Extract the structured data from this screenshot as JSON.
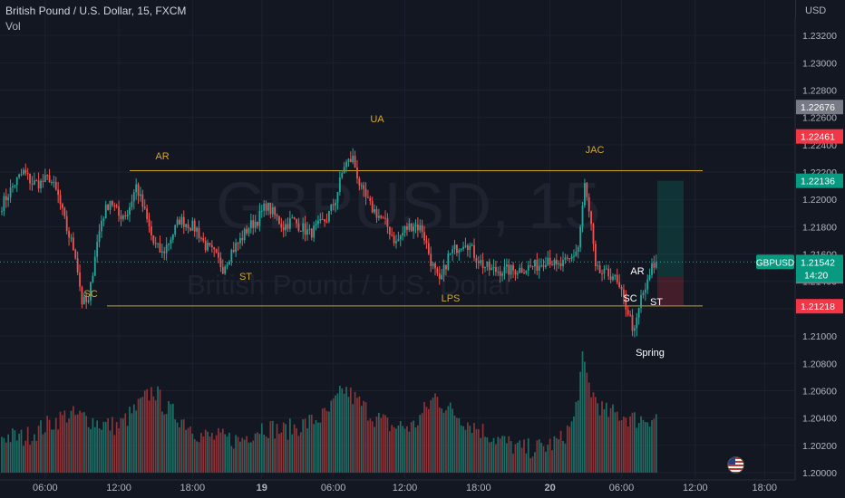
{
  "header": {
    "title": "British Pound / U.S. Dollar, 15, FXCM",
    "volume_label": "Vol",
    "currency": "USD"
  },
  "watermark": {
    "symbol": "GBPUSD, 15",
    "name": "British Pound / U.S. Dollar"
  },
  "colors": {
    "background": "#131722",
    "up": "#26a69a",
    "down": "#ef5350",
    "range_lines": "#c9a227",
    "annotation": "#d4a82a"
  },
  "chart_data": {
    "type": "candlestick",
    "symbol": "GBPUSD",
    "interval": "15",
    "source": "FXCM",
    "x_ticks": [
      "06:00",
      "12:00",
      "18:00",
      "19",
      "06:00",
      "12:00",
      "18:00",
      "20",
      "06:00",
      "12:00",
      "18:00"
    ],
    "y_ticks": [
      1.232,
      1.23,
      1.228,
      1.226,
      1.224,
      1.222,
      1.22,
      1.218,
      1.216,
      1.214,
      1.212,
      1.21,
      1.208,
      1.206,
      1.204,
      1.202,
      1.2
    ],
    "ylim": [
      1.1996,
      1.2338
    ],
    "price_labels": [
      {
        "value": "1.22676",
        "color": "#787b86"
      },
      {
        "value": "1.22461",
        "color": "#f23645"
      },
      {
        "value": "1.22136",
        "color": "#089981"
      },
      {
        "value": "1.21437",
        "color": "#787b86"
      },
      {
        "value": "1.21218",
        "color": "#f23645"
      }
    ],
    "last_price": {
      "symbol": "GBPUSD",
      "value": "1.21542",
      "countdown": "14:20",
      "price": 1.21542
    },
    "range": {
      "top": 1.2221,
      "bottom": 1.2122
    },
    "annotations": [
      {
        "text": "AR",
        "color": "#d4a82a"
      },
      {
        "text": "UA",
        "color": "#d4a82a"
      },
      {
        "text": "JAC",
        "color": "#d4a82a"
      },
      {
        "text": "SC",
        "color": "#d4a82a"
      },
      {
        "text": "ST",
        "color": "#d4a82a"
      },
      {
        "text": "LPS",
        "color": "#d4a82a"
      },
      {
        "text": "AR",
        "color": "#ffffff"
      },
      {
        "text": "SC",
        "color": "#ffffff"
      },
      {
        "text": "ST",
        "color": "#ffffff"
      },
      {
        "text": "Spring",
        "color": "#ffffff"
      }
    ],
    "position": {
      "entry": 1.21437,
      "target": 1.22136,
      "stop": 1.21218
    },
    "waypoints": [
      [
        0,
        1.2196
      ],
      [
        6,
        1.2212
      ],
      [
        10,
        1.222
      ],
      [
        14,
        1.2212
      ],
      [
        18,
        1.2212
      ],
      [
        22,
        1.2216
      ],
      [
        26,
        1.2202
      ],
      [
        30,
        1.2178
      ],
      [
        34,
        1.216
      ],
      [
        37,
        1.2125
      ],
      [
        40,
        1.2124
      ],
      [
        43,
        1.216
      ],
      [
        46,
        1.2185
      ],
      [
        50,
        1.22
      ],
      [
        54,
        1.2188
      ],
      [
        58,
        1.219
      ],
      [
        62,
        1.221
      ],
      [
        66,
        1.219
      ],
      [
        70,
        1.2168
      ],
      [
        74,
        1.216
      ],
      [
        78,
        1.2172
      ],
      [
        82,
        1.2185
      ],
      [
        86,
        1.2182
      ],
      [
        90,
        1.2178
      ],
      [
        94,
        1.2166
      ],
      [
        98,
        1.216
      ],
      [
        102,
        1.215
      ],
      [
        106,
        1.2162
      ],
      [
        110,
        1.217
      ],
      [
        114,
        1.218
      ],
      [
        118,
        1.2185
      ],
      [
        122,
        1.2196
      ],
      [
        126,
        1.2188
      ],
      [
        130,
        1.218
      ],
      [
        134,
        1.2185
      ],
      [
        138,
        1.218
      ],
      [
        142,
        1.2175
      ],
      [
        146,
        1.218
      ],
      [
        150,
        1.2186
      ],
      [
        154,
        1.22
      ],
      [
        158,
        1.2225
      ],
      [
        162,
        1.223
      ],
      [
        166,
        1.2206
      ],
      [
        170,
        1.2195
      ],
      [
        174,
        1.2188
      ],
      [
        178,
        1.218
      ],
      [
        182,
        1.2168
      ],
      [
        186,
        1.2178
      ],
      [
        190,
        1.2182
      ],
      [
        194,
        1.2178
      ],
      [
        198,
        1.2155
      ],
      [
        202,
        1.2138
      ],
      [
        206,
        1.2158
      ],
      [
        210,
        1.2165
      ],
      [
        214,
        1.217
      ],
      [
        218,
        1.216
      ],
      [
        222,
        1.2152
      ],
      [
        226,
        1.2148
      ],
      [
        230,
        1.2148
      ],
      [
        236,
        1.2148
      ],
      [
        242,
        1.215
      ],
      [
        248,
        1.2152
      ],
      [
        252,
        1.2158
      ],
      [
        256,
        1.215
      ],
      [
        262,
        1.2155
      ],
      [
        266,
        1.2165
      ],
      [
        269,
        1.221
      ],
      [
        272,
        1.218
      ],
      [
        274,
        1.2148
      ],
      [
        278,
        1.2145
      ],
      [
        282,
        1.2145
      ],
      [
        286,
        1.213
      ],
      [
        289,
        1.2118
      ],
      [
        292,
        1.2102
      ],
      [
        295,
        1.2128
      ],
      [
        298,
        1.2138
      ],
      [
        300,
        1.215
      ],
      [
        302,
        1.2154
      ]
    ],
    "volume_waypoints": [
      [
        0,
        0.32
      ],
      [
        10,
        0.3
      ],
      [
        20,
        0.4
      ],
      [
        30,
        0.5
      ],
      [
        38,
        0.48
      ],
      [
        46,
        0.42
      ],
      [
        54,
        0.4
      ],
      [
        62,
        0.55
      ],
      [
        70,
        0.72
      ],
      [
        76,
        0.55
      ],
      [
        84,
        0.45
      ],
      [
        92,
        0.32
      ],
      [
        100,
        0.3
      ],
      [
        110,
        0.28
      ],
      [
        120,
        0.4
      ],
      [
        130,
        0.36
      ],
      [
        140,
        0.42
      ],
      [
        150,
        0.5
      ],
      [
        158,
        0.72
      ],
      [
        165,
        0.6
      ],
      [
        172,
        0.48
      ],
      [
        180,
        0.4
      ],
      [
        190,
        0.4
      ],
      [
        200,
        0.66
      ],
      [
        206,
        0.55
      ],
      [
        214,
        0.45
      ],
      [
        222,
        0.36
      ],
      [
        230,
        0.28
      ],
      [
        240,
        0.2
      ],
      [
        250,
        0.22
      ],
      [
        258,
        0.28
      ],
      [
        264,
        0.45
      ],
      [
        268,
        0.96
      ],
      [
        272,
        0.7
      ],
      [
        278,
        0.52
      ],
      [
        286,
        0.5
      ],
      [
        292,
        0.46
      ],
      [
        302,
        0.48
      ]
    ]
  }
}
